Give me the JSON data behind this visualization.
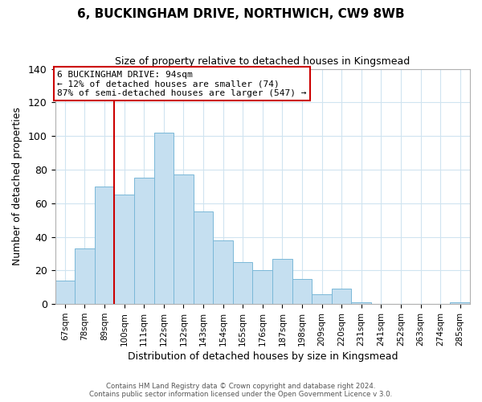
{
  "title": "6, BUCKINGHAM DRIVE, NORTHWICH, CW9 8WB",
  "subtitle": "Size of property relative to detached houses in Kingsmead",
  "xlabel": "Distribution of detached houses by size in Kingsmead",
  "ylabel": "Number of detached properties",
  "bar_labels": [
    "67sqm",
    "78sqm",
    "89sqm",
    "100sqm",
    "111sqm",
    "122sqm",
    "132sqm",
    "143sqm",
    "154sqm",
    "165sqm",
    "176sqm",
    "187sqm",
    "198sqm",
    "209sqm",
    "220sqm",
    "231sqm",
    "241sqm",
    "252sqm",
    "263sqm",
    "274sqm",
    "285sqm"
  ],
  "bar_heights": [
    14,
    33,
    70,
    65,
    75,
    102,
    77,
    55,
    38,
    25,
    20,
    27,
    15,
    6,
    9,
    1,
    0,
    0,
    0,
    0,
    1
  ],
  "bar_color": "#c5dff0",
  "bar_edge_color": "#7ab8d8",
  "vline_color": "#cc0000",
  "vline_x_index": 2.5,
  "ylim": [
    0,
    140
  ],
  "yticks": [
    0,
    20,
    40,
    60,
    80,
    100,
    120,
    140
  ],
  "annotation_title": "6 BUCKINGHAM DRIVE: 94sqm",
  "annotation_line1": "← 12% of detached houses are smaller (74)",
  "annotation_line2": "87% of semi-detached houses are larger (547) →",
  "annotation_box_color": "#ffffff",
  "annotation_box_edge": "#cc0000",
  "footer_line1": "Contains HM Land Registry data © Crown copyright and database right 2024.",
  "footer_line2": "Contains public sector information licensed under the Open Government Licence v 3.0.",
  "background_color": "#ffffff",
  "grid_color": "#d0e4f0"
}
